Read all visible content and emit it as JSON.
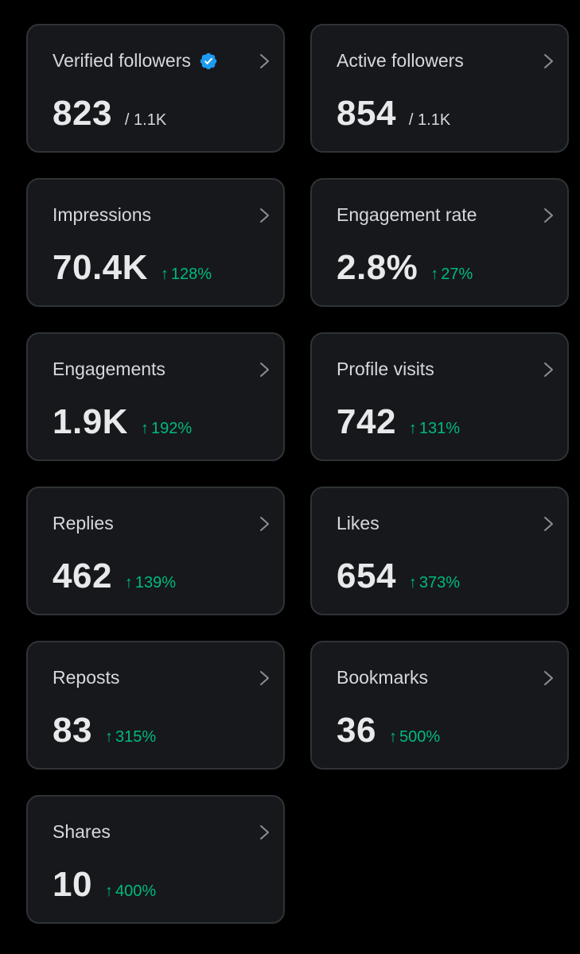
{
  "colors": {
    "background": "#000000",
    "card_bg": "#16181c",
    "card_border": "#2f3336",
    "text_primary": "#e7e9ea",
    "text_secondary": "#d6d9db",
    "positive": "#00ba7c",
    "verified_blue": "#1d9bf0"
  },
  "icons": {
    "verified": "verified-badge-icon",
    "chevron": "chevron-right-icon",
    "trend": "arrow-up-icon"
  },
  "cards": [
    {
      "title": "Verified followers",
      "value": "823",
      "sub": "/ 1.1K",
      "verified": true
    },
    {
      "title": "Active followers",
      "value": "854",
      "sub": "/ 1.1K"
    },
    {
      "title": "Impressions",
      "value": "70.4K",
      "arrow": "↑",
      "delta": "128%"
    },
    {
      "title": "Engagement rate",
      "value": "2.8%",
      "arrow": "↑",
      "delta": "27%"
    },
    {
      "title": "Engagements",
      "value": "1.9K",
      "arrow": "↑",
      "delta": "192%"
    },
    {
      "title": "Profile visits",
      "value": "742",
      "arrow": "↑",
      "delta": "131%"
    },
    {
      "title": "Replies",
      "value": "462",
      "arrow": "↑",
      "delta": "139%"
    },
    {
      "title": "Likes",
      "value": "654",
      "arrow": "↑",
      "delta": "373%"
    },
    {
      "title": "Reposts",
      "value": "83",
      "arrow": "↑",
      "delta": "315%"
    },
    {
      "title": "Bookmarks",
      "value": "36",
      "arrow": "↑",
      "delta": "500%"
    },
    {
      "title": "Shares",
      "value": "10",
      "arrow": "↑",
      "delta": "400%"
    }
  ]
}
